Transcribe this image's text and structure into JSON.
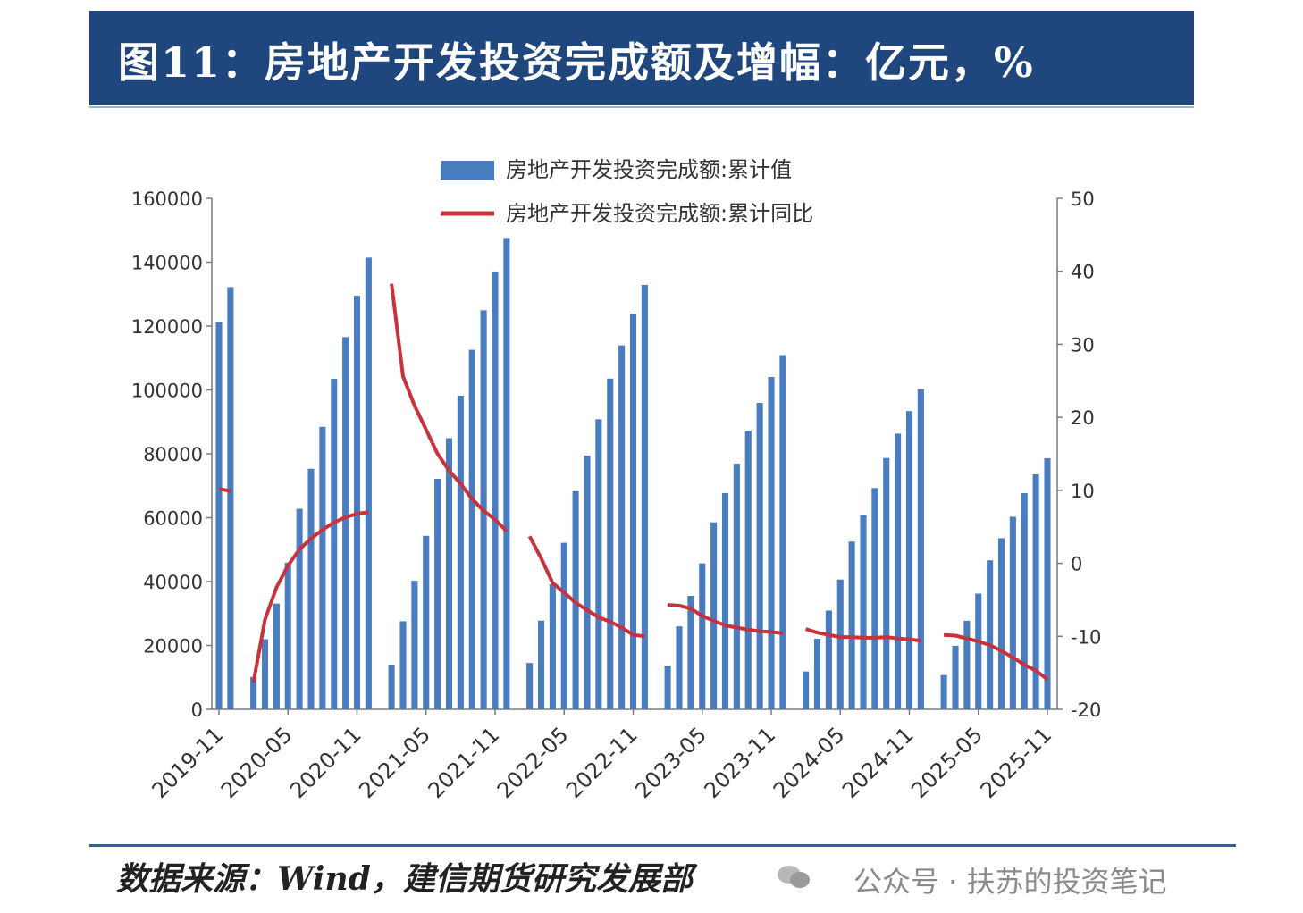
{
  "header": {
    "title": "图11：房地产开发投资完成额及增幅：亿元，%"
  },
  "footer": {
    "source": "数据来源：Wind，建信期货研究发展部",
    "watermark": "公众号 · 扶苏的投资笔记"
  },
  "colors": {
    "bar": "#4a7cc0",
    "line": "#c8323c",
    "title_bg": "#1f477d"
  },
  "icons": {
    "watermark": "wechat-icon"
  },
  "chart_data": {
    "type": "bar",
    "legend_position": "top-center",
    "grid": false,
    "x": [
      "2019-11",
      "2019-12",
      "2020-01",
      "2020-02",
      "2020-03",
      "2020-04",
      "2020-05",
      "2020-06",
      "2020-07",
      "2020-08",
      "2020-09",
      "2020-10",
      "2020-11",
      "2020-12",
      "2021-01",
      "2021-02",
      "2021-03",
      "2021-04",
      "2021-05",
      "2021-06",
      "2021-07",
      "2021-08",
      "2021-09",
      "2021-10",
      "2021-11",
      "2021-12",
      "2022-01",
      "2022-02",
      "2022-03",
      "2022-04",
      "2022-05",
      "2022-06",
      "2022-07",
      "2022-08",
      "2022-09",
      "2022-10",
      "2022-11",
      "2022-12",
      "2023-01",
      "2023-02",
      "2023-03",
      "2023-04",
      "2023-05",
      "2023-06",
      "2023-07",
      "2023-08",
      "2023-09",
      "2023-10",
      "2023-11",
      "2023-12",
      "2024-01",
      "2024-02",
      "2024-03",
      "2024-04",
      "2024-05",
      "2024-06",
      "2024-07",
      "2024-08",
      "2024-09",
      "2024-10",
      "2024-11",
      "2024-12",
      "2025-01",
      "2025-02",
      "2025-03",
      "2025-04",
      "2025-05",
      "2025-06",
      "2025-07",
      "2025-08",
      "2025-09",
      "2025-10",
      "2025-11"
    ],
    "tick_labels": [
      "2019-11",
      "2020-05",
      "2020-11",
      "2021-05",
      "2021-11",
      "2022-05",
      "2022-11",
      "2023-05",
      "2023-11",
      "2024-05",
      "2024-11",
      "2025-05",
      "2025-11"
    ],
    "y_left": {
      "ticks": [
        0,
        20000,
        40000,
        60000,
        80000,
        100000,
        120000,
        140000,
        160000
      ],
      "ylim": [
        0,
        160000
      ]
    },
    "y_right": {
      "ticks": [
        -20,
        -10,
        0,
        10,
        20,
        30,
        40,
        50
      ],
      "ylim": [
        -20,
        50
      ]
    },
    "series": [
      {
        "name": "房地产开发投资完成额:累计值",
        "kind": "bar",
        "axis": "left",
        "values": [
          121265,
          132194,
          null,
          10115,
          21963,
          33103,
          45920,
          62780,
          75325,
          88454,
          103484,
          116556,
          129492,
          141443,
          null,
          13986,
          27576,
          40240,
          54318,
          72179,
          84895,
          98199,
          112559,
          124934,
          137086,
          147602,
          null,
          14499,
          27765,
          39154,
          52134,
          68314,
          79462,
          90809,
          103559,
          113945,
          123863,
          132895,
          null,
          13669,
          25974,
          35514,
          45701,
          58550,
          67717,
          76900,
          87269,
          95922,
          104045,
          110913,
          null,
          11842,
          22082,
          30928,
          40632,
          52529,
          60877,
          69284,
          78680,
          86309,
          93368,
          100280,
          null,
          10720,
          19904,
          27730,
          36234,
          46658,
          53580,
          60309,
          67706,
          73563,
          78591
        ]
      },
      {
        "name": "房地产开发投资完成额:累计同比",
        "kind": "line",
        "axis": "right",
        "values": [
          10.2,
          9.9,
          null,
          -16.3,
          -7.7,
          -3.3,
          -0.3,
          1.9,
          3.4,
          4.6,
          5.6,
          6.3,
          6.8,
          7.0,
          null,
          38.3,
          25.6,
          21.6,
          18.3,
          15.0,
          12.7,
          10.9,
          8.8,
          7.2,
          6.0,
          4.4,
          null,
          3.7,
          0.7,
          -2.7,
          -4.0,
          -5.4,
          -6.4,
          -7.4,
          -8.0,
          -8.8,
          -9.8,
          -10.0,
          null,
          -5.7,
          -5.8,
          -6.2,
          -7.2,
          -7.9,
          -8.5,
          -8.8,
          -9.1,
          -9.3,
          -9.4,
          -9.6,
          null,
          -9.0,
          -9.5,
          -9.8,
          -10.1,
          -10.1,
          -10.2,
          -10.2,
          -10.1,
          -10.3,
          -10.4,
          -10.6,
          null,
          -9.8,
          -9.9,
          -10.3,
          -10.7,
          -11.2,
          -12.0,
          -12.9,
          -13.9,
          -14.7,
          -15.9
        ]
      }
    ]
  }
}
